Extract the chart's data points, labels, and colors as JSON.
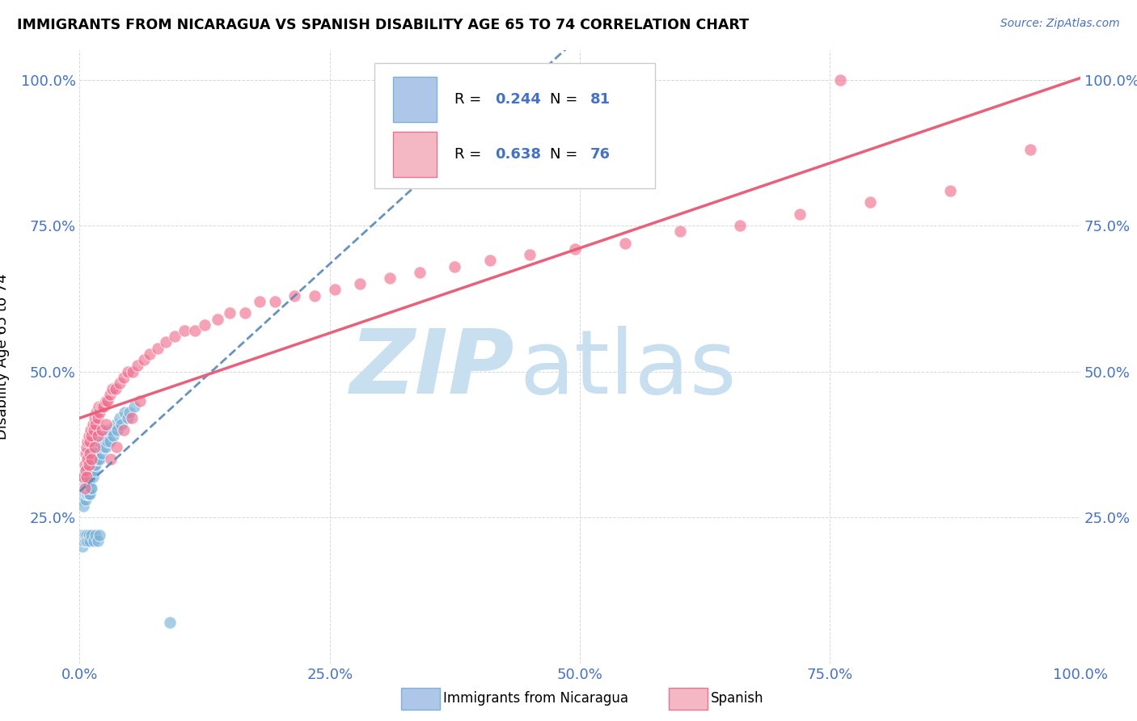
{
  "title": "IMMIGRANTS FROM NICARAGUA VS SPANISH DISABILITY AGE 65 TO 74 CORRELATION CHART",
  "source": "Source: ZipAtlas.com",
  "ylabel": "Disability Age 65 to 74",
  "xlim": [
    0,
    1.0
  ],
  "ylim": [
    0,
    1.05
  ],
  "x_ticks": [
    0.0,
    0.25,
    0.5,
    0.75,
    1.0
  ],
  "y_ticks": [
    0.0,
    0.25,
    0.5,
    0.75,
    1.0
  ],
  "x_tick_labels": [
    "0.0%",
    "25.0%",
    "50.0%",
    "75.0%",
    "100.0%"
  ],
  "y_tick_labels": [
    "",
    "25.0%",
    "50.0%",
    "75.0%",
    "100.0%"
  ],
  "series1_color": "#7ab3d9",
  "series2_color": "#f07090",
  "trendline1_color": "#5588bb",
  "trendline2_color": "#e8607a",
  "watermark_color": "#c8dff0",
  "legend_r1": "0.244",
  "legend_n1": "81",
  "legend_r2": "0.638",
  "legend_n2": "76",
  "blue_text_color": "#4472C4",
  "nic_x": [
    0.001,
    0.002,
    0.003,
    0.003,
    0.004,
    0.004,
    0.004,
    0.005,
    0.005,
    0.005,
    0.006,
    0.006,
    0.006,
    0.007,
    0.007,
    0.007,
    0.008,
    0.008,
    0.008,
    0.009,
    0.009,
    0.009,
    0.01,
    0.01,
    0.01,
    0.011,
    0.011,
    0.011,
    0.012,
    0.012,
    0.012,
    0.013,
    0.013,
    0.014,
    0.014,
    0.015,
    0.015,
    0.016,
    0.016,
    0.017,
    0.017,
    0.018,
    0.018,
    0.019,
    0.02,
    0.02,
    0.021,
    0.022,
    0.023,
    0.024,
    0.025,
    0.026,
    0.027,
    0.028,
    0.029,
    0.03,
    0.032,
    0.034,
    0.036,
    0.038,
    0.04,
    0.042,
    0.045,
    0.048,
    0.05,
    0.055,
    0.002,
    0.003,
    0.004,
    0.005,
    0.006,
    0.007,
    0.008,
    0.009,
    0.01,
    0.012,
    0.014,
    0.016,
    0.018,
    0.02,
    0.09
  ],
  "nic_y": [
    0.28,
    0.31,
    0.3,
    0.29,
    0.32,
    0.28,
    0.27,
    0.33,
    0.3,
    0.29,
    0.31,
    0.28,
    0.33,
    0.32,
    0.3,
    0.29,
    0.33,
    0.31,
    0.29,
    0.34,
    0.31,
    0.29,
    0.34,
    0.32,
    0.29,
    0.35,
    0.33,
    0.3,
    0.36,
    0.33,
    0.3,
    0.35,
    0.32,
    0.36,
    0.33,
    0.37,
    0.34,
    0.37,
    0.34,
    0.38,
    0.35,
    0.38,
    0.35,
    0.39,
    0.38,
    0.35,
    0.38,
    0.36,
    0.38,
    0.37,
    0.39,
    0.37,
    0.39,
    0.38,
    0.4,
    0.38,
    0.4,
    0.39,
    0.41,
    0.4,
    0.42,
    0.41,
    0.43,
    0.42,
    0.43,
    0.44,
    0.22,
    0.2,
    0.21,
    0.22,
    0.21,
    0.22,
    0.21,
    0.22,
    0.21,
    0.22,
    0.21,
    0.22,
    0.21,
    0.22,
    0.07
  ],
  "spa_x": [
    0.004,
    0.005,
    0.006,
    0.006,
    0.007,
    0.008,
    0.008,
    0.009,
    0.01,
    0.01,
    0.011,
    0.012,
    0.013,
    0.014,
    0.015,
    0.016,
    0.017,
    0.018,
    0.019,
    0.02,
    0.022,
    0.024,
    0.026,
    0.028,
    0.03,
    0.033,
    0.036,
    0.04,
    0.044,
    0.048,
    0.053,
    0.058,
    0.064,
    0.07,
    0.078,
    0.086,
    0.095,
    0.105,
    0.115,
    0.125,
    0.138,
    0.15,
    0.165,
    0.18,
    0.195,
    0.215,
    0.235,
    0.255,
    0.28,
    0.31,
    0.34,
    0.375,
    0.41,
    0.45,
    0.495,
    0.545,
    0.6,
    0.66,
    0.72,
    0.79,
    0.87,
    0.95,
    0.005,
    0.007,
    0.009,
    0.012,
    0.015,
    0.018,
    0.022,
    0.026,
    0.031,
    0.037,
    0.044,
    0.052,
    0.06,
    0.76
  ],
  "spa_y": [
    0.32,
    0.34,
    0.36,
    0.33,
    0.37,
    0.38,
    0.35,
    0.39,
    0.38,
    0.36,
    0.4,
    0.39,
    0.41,
    0.4,
    0.42,
    0.41,
    0.43,
    0.42,
    0.44,
    0.43,
    0.44,
    0.44,
    0.45,
    0.45,
    0.46,
    0.47,
    0.47,
    0.48,
    0.49,
    0.5,
    0.5,
    0.51,
    0.52,
    0.53,
    0.54,
    0.55,
    0.56,
    0.57,
    0.57,
    0.58,
    0.59,
    0.6,
    0.6,
    0.62,
    0.62,
    0.63,
    0.63,
    0.64,
    0.65,
    0.66,
    0.67,
    0.68,
    0.69,
    0.7,
    0.71,
    0.72,
    0.74,
    0.75,
    0.77,
    0.79,
    0.81,
    0.88,
    0.3,
    0.32,
    0.34,
    0.35,
    0.37,
    0.39,
    0.4,
    0.41,
    0.35,
    0.37,
    0.4,
    0.42,
    0.45,
    1.0
  ]
}
